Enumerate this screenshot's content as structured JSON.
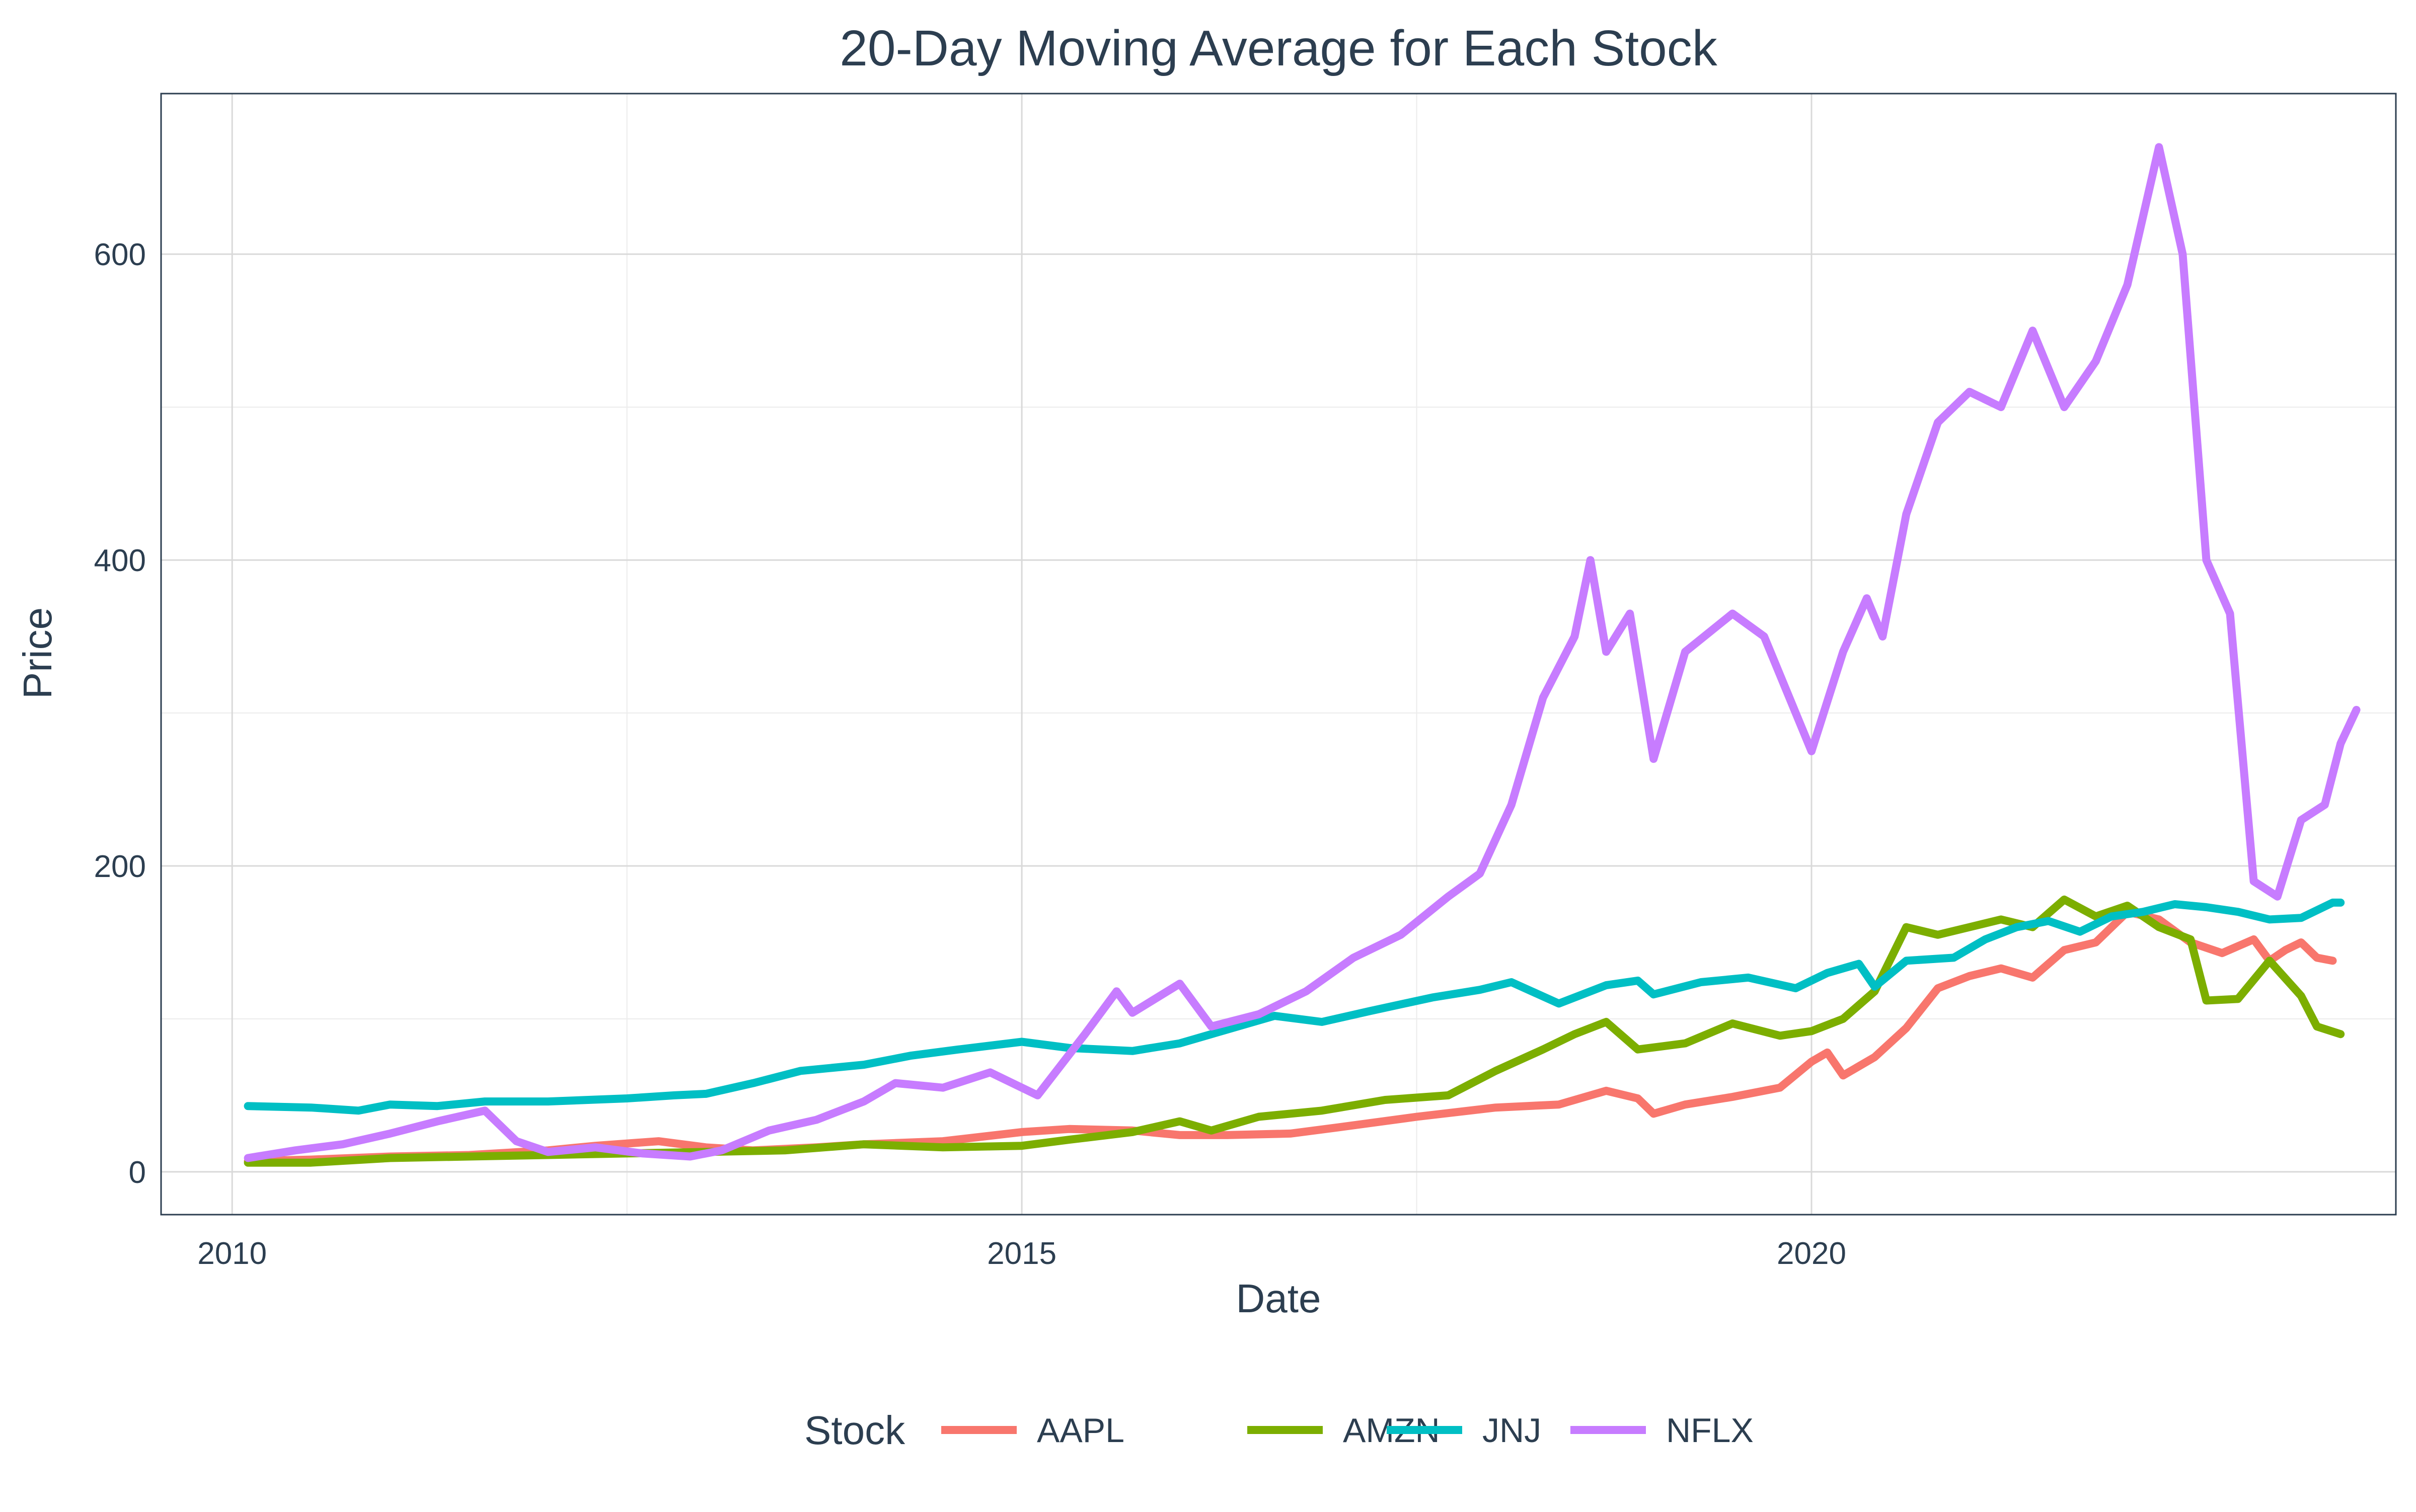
{
  "chart_data": {
    "type": "line",
    "title": "20-Day Moving Average for Each Stock",
    "xlabel": "Date",
    "ylabel": "Price",
    "xlim": [
      2009.55,
      2023.7
    ],
    "ylim": [
      -28,
      705
    ],
    "x_ticks": [
      {
        "value": 2010,
        "label": "2010"
      },
      {
        "value": 2015,
        "label": "2015"
      },
      {
        "value": 2020,
        "label": "2020"
      }
    ],
    "y_ticks": [
      {
        "value": 0,
        "label": "0"
      },
      {
        "value": 200,
        "label": "200"
      },
      {
        "value": 400,
        "label": "400"
      },
      {
        "value": 600,
        "label": "600"
      }
    ],
    "grid": true,
    "legend": {
      "title": "Stock",
      "position": "bottom"
    },
    "series": [
      {
        "name": "AAPL",
        "color": "#F8766D",
        "points": [
          [
            2010.1,
            7
          ],
          [
            2010.5,
            8
          ],
          [
            2011.0,
            10
          ],
          [
            2011.5,
            11
          ],
          [
            2012.0,
            14
          ],
          [
            2012.3,
            17
          ],
          [
            2012.7,
            20
          ],
          [
            2013.0,
            16
          ],
          [
            2013.3,
            14
          ],
          [
            2013.7,
            16
          ],
          [
            2014.0,
            18
          ],
          [
            2014.5,
            20
          ],
          [
            2015.0,
            26
          ],
          [
            2015.3,
            28
          ],
          [
            2015.7,
            27
          ],
          [
            2016.0,
            24
          ],
          [
            2016.3,
            24
          ],
          [
            2016.7,
            25
          ],
          [
            2017.0,
            29
          ],
          [
            2017.5,
            36
          ],
          [
            2018.0,
            42
          ],
          [
            2018.4,
            44
          ],
          [
            2018.7,
            53
          ],
          [
            2018.9,
            48
          ],
          [
            2019.0,
            38
          ],
          [
            2019.2,
            44
          ],
          [
            2019.5,
            49
          ],
          [
            2019.8,
            55
          ],
          [
            2020.0,
            72
          ],
          [
            2020.1,
            78
          ],
          [
            2020.2,
            63
          ],
          [
            2020.4,
            75
          ],
          [
            2020.6,
            94
          ],
          [
            2020.8,
            120
          ],
          [
            2021.0,
            128
          ],
          [
            2021.2,
            133
          ],
          [
            2021.4,
            127
          ],
          [
            2021.6,
            145
          ],
          [
            2021.8,
            150
          ],
          [
            2022.0,
            170
          ],
          [
            2022.2,
            165
          ],
          [
            2022.4,
            150
          ],
          [
            2022.6,
            143
          ],
          [
            2022.8,
            152
          ],
          [
            2022.9,
            138
          ],
          [
            2023.0,
            145
          ],
          [
            2023.1,
            150
          ],
          [
            2023.2,
            140
          ],
          [
            2023.3,
            138
          ]
        ]
      },
      {
        "name": "AMZN",
        "color": "#7CAE00",
        "points": [
          [
            2010.1,
            6
          ],
          [
            2010.5,
            6
          ],
          [
            2011.0,
            9
          ],
          [
            2011.5,
            10
          ],
          [
            2012.0,
            11
          ],
          [
            2012.5,
            12
          ],
          [
            2013.0,
            13
          ],
          [
            2013.5,
            14
          ],
          [
            2014.0,
            18
          ],
          [
            2014.5,
            16
          ],
          [
            2015.0,
            17
          ],
          [
            2015.3,
            21
          ],
          [
            2015.7,
            26
          ],
          [
            2016.0,
            33
          ],
          [
            2016.2,
            27
          ],
          [
            2016.5,
            36
          ],
          [
            2016.9,
            40
          ],
          [
            2017.3,
            47
          ],
          [
            2017.7,
            50
          ],
          [
            2018.0,
            66
          ],
          [
            2018.3,
            80
          ],
          [
            2018.5,
            90
          ],
          [
            2018.7,
            98
          ],
          [
            2018.9,
            80
          ],
          [
            2019.2,
            84
          ],
          [
            2019.5,
            97
          ],
          [
            2019.8,
            89
          ],
          [
            2020.0,
            92
          ],
          [
            2020.2,
            100
          ],
          [
            2020.4,
            118
          ],
          [
            2020.6,
            160
          ],
          [
            2020.8,
            155
          ],
          [
            2021.0,
            160
          ],
          [
            2021.2,
            165
          ],
          [
            2021.4,
            160
          ],
          [
            2021.6,
            178
          ],
          [
            2021.8,
            167
          ],
          [
            2022.0,
            174
          ],
          [
            2022.2,
            160
          ],
          [
            2022.4,
            152
          ],
          [
            2022.5,
            112
          ],
          [
            2022.7,
            113
          ],
          [
            2022.9,
            138
          ],
          [
            2023.1,
            115
          ],
          [
            2023.2,
            95
          ],
          [
            2023.35,
            90
          ]
        ]
      },
      {
        "name": "JNJ",
        "color": "#00BFC4",
        "points": [
          [
            2010.1,
            43
          ],
          [
            2010.5,
            42
          ],
          [
            2010.8,
            40
          ],
          [
            2011.0,
            44
          ],
          [
            2011.3,
            43
          ],
          [
            2011.6,
            46
          ],
          [
            2012.0,
            46
          ],
          [
            2012.5,
            48
          ],
          [
            2012.8,
            50
          ],
          [
            2013.0,
            51
          ],
          [
            2013.3,
            58
          ],
          [
            2013.6,
            66
          ],
          [
            2014.0,
            70
          ],
          [
            2014.3,
            76
          ],
          [
            2014.6,
            80
          ],
          [
            2015.0,
            85
          ],
          [
            2015.3,
            81
          ],
          [
            2015.7,
            79
          ],
          [
            2016.0,
            84
          ],
          [
            2016.3,
            93
          ],
          [
            2016.6,
            102
          ],
          [
            2016.9,
            98
          ],
          [
            2017.2,
            105
          ],
          [
            2017.6,
            114
          ],
          [
            2017.9,
            119
          ],
          [
            2018.1,
            124
          ],
          [
            2018.4,
            110
          ],
          [
            2018.7,
            122
          ],
          [
            2018.9,
            125
          ],
          [
            2019.0,
            116
          ],
          [
            2019.3,
            124
          ],
          [
            2019.6,
            127
          ],
          [
            2019.9,
            120
          ],
          [
            2020.1,
            130
          ],
          [
            2020.3,
            136
          ],
          [
            2020.4,
            121
          ],
          [
            2020.6,
            138
          ],
          [
            2020.9,
            140
          ],
          [
            2021.1,
            152
          ],
          [
            2021.3,
            160
          ],
          [
            2021.5,
            164
          ],
          [
            2021.7,
            157
          ],
          [
            2021.9,
            167
          ],
          [
            2022.1,
            170
          ],
          [
            2022.3,
            175
          ],
          [
            2022.5,
            173
          ],
          [
            2022.7,
            170
          ],
          [
            2022.9,
            165
          ],
          [
            2023.1,
            166
          ],
          [
            2023.3,
            176
          ],
          [
            2023.35,
            176
          ]
        ]
      },
      {
        "name": "NFLX",
        "color": "#C77CFF",
        "points": [
          [
            2010.1,
            9
          ],
          [
            2010.4,
            14
          ],
          [
            2010.7,
            18
          ],
          [
            2011.0,
            25
          ],
          [
            2011.3,
            33
          ],
          [
            2011.6,
            40
          ],
          [
            2011.8,
            20
          ],
          [
            2012.0,
            13
          ],
          [
            2012.3,
            16
          ],
          [
            2012.6,
            12
          ],
          [
            2012.9,
            10
          ],
          [
            2013.1,
            14
          ],
          [
            2013.4,
            27
          ],
          [
            2013.7,
            34
          ],
          [
            2014.0,
            46
          ],
          [
            2014.2,
            58
          ],
          [
            2014.5,
            55
          ],
          [
            2014.8,
            65
          ],
          [
            2015.1,
            50
          ],
          [
            2015.4,
            90
          ],
          [
            2015.6,
            118
          ],
          [
            2015.7,
            104
          ],
          [
            2016.0,
            123
          ],
          [
            2016.2,
            95
          ],
          [
            2016.5,
            103
          ],
          [
            2016.8,
            118
          ],
          [
            2017.1,
            140
          ],
          [
            2017.4,
            155
          ],
          [
            2017.7,
            180
          ],
          [
            2017.9,
            195
          ],
          [
            2018.1,
            240
          ],
          [
            2018.3,
            310
          ],
          [
            2018.5,
            350
          ],
          [
            2018.6,
            400
          ],
          [
            2018.7,
            340
          ],
          [
            2018.85,
            365
          ],
          [
            2019.0,
            270
          ],
          [
            2019.2,
            340
          ],
          [
            2019.5,
            365
          ],
          [
            2019.7,
            350
          ],
          [
            2019.9,
            300
          ],
          [
            2020.0,
            275
          ],
          [
            2020.2,
            340
          ],
          [
            2020.35,
            375
          ],
          [
            2020.45,
            350
          ],
          [
            2020.6,
            430
          ],
          [
            2020.8,
            490
          ],
          [
            2021.0,
            510
          ],
          [
            2021.2,
            500
          ],
          [
            2021.4,
            550
          ],
          [
            2021.6,
            500
          ],
          [
            2021.8,
            530
          ],
          [
            2022.0,
            580
          ],
          [
            2022.2,
            670
          ],
          [
            2022.35,
            600
          ],
          [
            2022.5,
            400
          ],
          [
            2022.65,
            365
          ],
          [
            2022.8,
            190
          ],
          [
            2022.95,
            180
          ],
          [
            2023.1,
            230
          ],
          [
            2023.25,
            240
          ],
          [
            2023.35,
            280
          ],
          [
            2023.45,
            302
          ]
        ]
      }
    ]
  }
}
